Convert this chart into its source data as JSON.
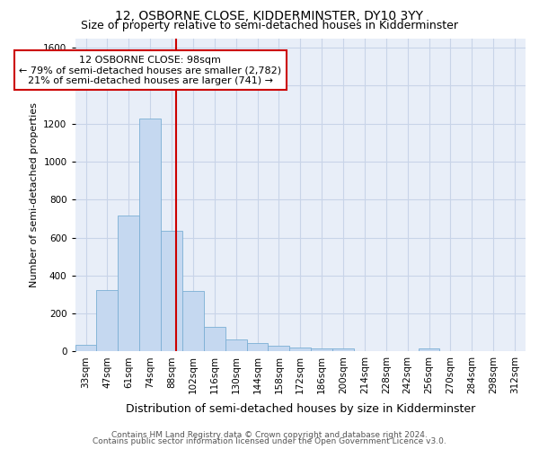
{
  "title": "12, OSBORNE CLOSE, KIDDERMINSTER, DY10 3YY",
  "subtitle": "Size of property relative to semi-detached houses in Kidderminster",
  "xlabel": "Distribution of semi-detached houses by size in Kidderminster",
  "ylabel": "Number of semi-detached properties",
  "bin_labels": [
    "33sqm",
    "47sqm",
    "61sqm",
    "74sqm",
    "88sqm",
    "102sqm",
    "116sqm",
    "130sqm",
    "144sqm",
    "158sqm",
    "172sqm",
    "186sqm",
    "200sqm",
    "214sqm",
    "228sqm",
    "242sqm",
    "256sqm",
    "270sqm",
    "284sqm",
    "298sqm",
    "312sqm"
  ],
  "bar_heights": [
    35,
    325,
    715,
    1225,
    635,
    320,
    128,
    62,
    45,
    30,
    22,
    18,
    14,
    0,
    0,
    0,
    14,
    0,
    0,
    0,
    0
  ],
  "bar_color": "#c5d8f0",
  "bar_edge_color": "#7bafd4",
  "vline_color": "#cc0000",
  "annotation_text_line1": "12 OSBORNE CLOSE: 98sqm",
  "annotation_text_line2": "← 79% of semi-detached houses are smaller (2,782)",
  "annotation_text_line3": "21% of semi-detached houses are larger (741) →",
  "annotation_box_facecolor": "#ffffff",
  "annotation_box_edgecolor": "#cc0000",
  "grid_color": "#c8d4e8",
  "background_color": "#e8eef8",
  "footer_line1": "Contains HM Land Registry data © Crown copyright and database right 2024.",
  "footer_line2": "Contains public sector information licensed under the Open Government Licence v3.0.",
  "ylim": [
    0,
    1650
  ],
  "title_fontsize": 10,
  "subtitle_fontsize": 9,
  "xlabel_fontsize": 9,
  "ylabel_fontsize": 8,
  "tick_fontsize": 7.5,
  "annotation_fontsize": 8,
  "footer_fontsize": 6.5
}
